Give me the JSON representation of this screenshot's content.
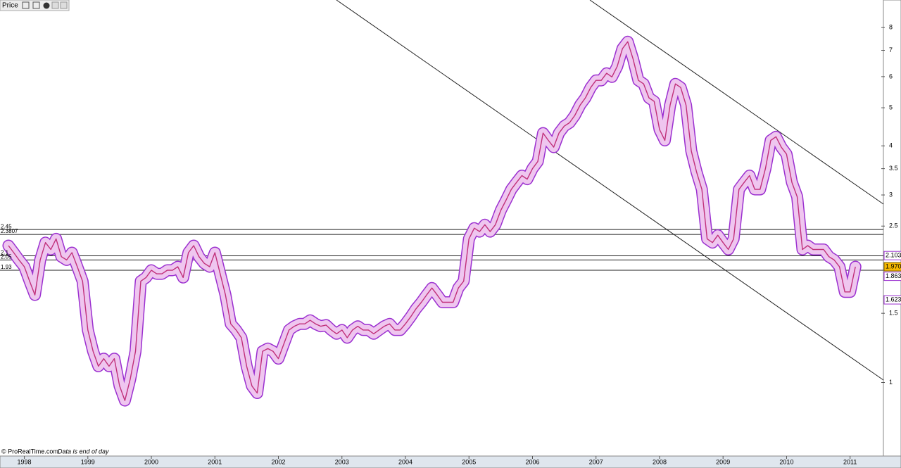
{
  "toolbar": {
    "title": "Price"
  },
  "footer": {
    "source": "© ProRealTime.com",
    "note": "Data is end of day"
  },
  "chart_data": {
    "type": "line",
    "log_scale": true,
    "color": "#c0307a",
    "band_color": "#9b30d0",
    "categories": [
      null,
      null,
      null,
      "1998",
      null,
      null,
      null,
      null,
      null,
      null,
      null,
      null,
      null,
      null,
      null,
      "1999",
      null,
      null,
      null,
      null,
      null,
      null,
      null,
      null,
      null,
      null,
      null,
      "2000",
      null,
      null,
      null,
      null,
      null,
      null,
      null,
      null,
      null,
      null,
      null,
      "2001",
      null,
      null,
      null,
      null,
      null,
      null,
      null,
      null,
      null,
      null,
      null,
      "2002",
      null,
      null,
      null,
      null,
      null,
      null,
      null,
      null,
      null,
      null,
      null,
      "2003",
      null,
      null,
      null,
      null,
      null,
      null,
      null,
      null,
      null,
      null,
      null,
      "2004",
      null,
      null,
      null,
      null,
      null,
      null,
      null,
      null,
      null,
      null,
      null,
      "2005",
      null,
      null,
      null,
      null,
      null,
      null,
      null,
      null,
      null,
      null,
      null,
      "2006",
      null,
      null,
      null,
      null,
      null,
      null,
      null,
      null,
      null,
      null,
      null,
      "2007",
      null,
      null,
      null,
      null,
      null,
      null,
      null,
      null,
      null,
      null,
      null,
      "2008",
      null,
      null,
      null,
      null,
      null,
      null,
      null,
      null,
      null,
      null,
      null,
      "2009",
      null,
      null,
      null,
      null,
      null,
      null,
      null,
      null,
      null,
      null,
      null,
      "2010",
      null,
      null,
      null,
      null,
      null,
      null,
      null,
      null,
      null,
      null,
      null,
      "2011",
      null
    ],
    "values": [
      2.23,
      2.14,
      2.05,
      1.97,
      1.81,
      1.67,
      2.05,
      2.27,
      2.18,
      2.32,
      2.09,
      2.05,
      2.14,
      1.97,
      1.81,
      1.36,
      1.2,
      1.1,
      1.15,
      1.1,
      1.15,
      0.98,
      0.9,
      1.02,
      1.2,
      1.81,
      1.85,
      1.93,
      1.89,
      1.89,
      1.93,
      1.93,
      1.97,
      1.85,
      2.14,
      2.23,
      2.09,
      2.01,
      1.97,
      2.14,
      1.89,
      1.67,
      1.41,
      1.36,
      1.3,
      1.1,
      0.98,
      0.94,
      1.2,
      1.22,
      1.2,
      1.15,
      1.25,
      1.36,
      1.39,
      1.41,
      1.41,
      1.44,
      1.41,
      1.39,
      1.4,
      1.36,
      1.33,
      1.36,
      1.3,
      1.36,
      1.39,
      1.36,
      1.36,
      1.33,
      1.36,
      1.39,
      1.41,
      1.36,
      1.36,
      1.41,
      1.47,
      1.54,
      1.6,
      1.67,
      1.74,
      1.67,
      1.6,
      1.6,
      1.6,
      1.74,
      1.81,
      2.32,
      2.47,
      2.42,
      2.52,
      2.42,
      2.52,
      2.74,
      2.91,
      3.1,
      3.23,
      3.36,
      3.29,
      3.5,
      3.65,
      4.31,
      4.13,
      3.97,
      4.31,
      4.49,
      4.58,
      4.78,
      5.08,
      5.3,
      5.63,
      5.87,
      5.87,
      6.12,
      5.99,
      6.37,
      7.07,
      7.36,
      6.65,
      5.87,
      5.75,
      5.3,
      5.19,
      4.4,
      4.13,
      5.08,
      5.75,
      5.63,
      5.08,
      3.88,
      3.43,
      3.1,
      2.32,
      2.27,
      2.37,
      2.27,
      2.18,
      2.32,
      3.1,
      3.23,
      3.36,
      3.1,
      3.1,
      3.5,
      4.13,
      4.22,
      3.97,
      3.81,
      3.23,
      2.97,
      2.18,
      2.23,
      2.18,
      2.18,
      2.18,
      2.09,
      2.05,
      1.97,
      1.7,
      1.7,
      1.97
    ],
    "ylim": [
      0.65,
      9.4
    ],
    "yticks": [
      1,
      1.5,
      2.5,
      3,
      3.5,
      4,
      5,
      6,
      7,
      8
    ],
    "hlines": [
      2.45,
      2.3807,
      2.1,
      2.05,
      1.93
    ],
    "price_tags": [
      2.103,
      {
        "value": 1.97,
        "label": "1.970"
      },
      1.863,
      1.623
    ]
  }
}
